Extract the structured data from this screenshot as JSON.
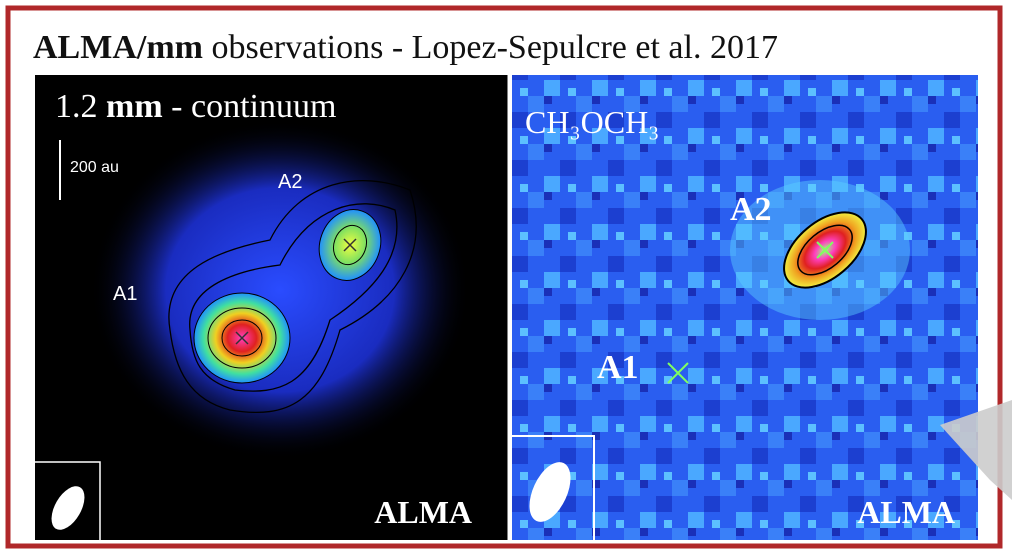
{
  "header": {
    "title_bold": "ALMA/mm",
    "title_rest": "observations - Lopez-Sepulcre et al. 2017"
  },
  "left_panel": {
    "label_num": "1.2",
    "label_bold": "mm",
    "label_rest": "- continuum",
    "scale": "200 au",
    "source_a2": "A2",
    "source_a1": "A1",
    "telescope": "ALMA"
  },
  "right_panel": {
    "molecule": "CH₃OCH₃",
    "source_a2": "A2",
    "source_a1": "A1",
    "telescope": "ALMA"
  }
}
